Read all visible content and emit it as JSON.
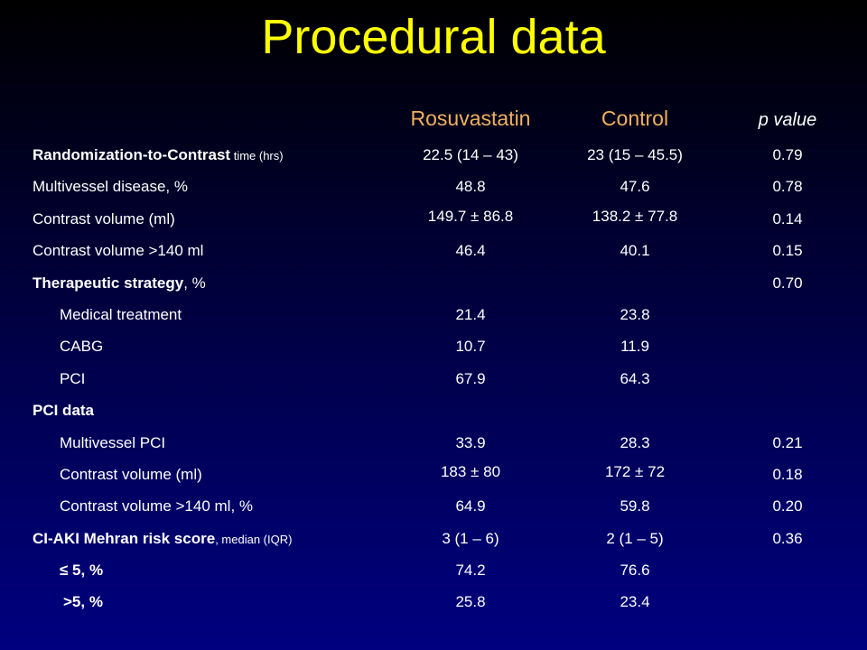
{
  "title": "Procedural data",
  "headers": {
    "rosuvastatin": "Rosuvastatin",
    "control": "Control",
    "pvalue": "p value"
  },
  "rows": [
    {
      "label_bold": "Randomization-to-Contrast",
      "label_suffix": " time (hrs)",
      "rosu": "22.5 (14 – 43)",
      "ctrl": "23 (15 – 45.5)",
      "p": "0.79"
    },
    {
      "label": "Multivessel disease, %",
      "rosu": "48.8",
      "ctrl": "47.6",
      "p": "0.78"
    },
    {
      "label": "Contrast volume (ml)",
      "rosu": "149.7 ± 86.8",
      "ctrl": "138.2 ± 77.8",
      "p": "0.14"
    },
    {
      "label": "Contrast volume >140 ml",
      "rosu": "46.4",
      "ctrl": "40.1",
      "p": "0.15"
    },
    {
      "label_bold": "Therapeutic strategy",
      "label_suffix": ", %",
      "rosu": "",
      "ctrl": "",
      "p": "0.70"
    },
    {
      "label": "Medical treatment",
      "rosu": "21.4",
      "ctrl": "23.8",
      "p": ""
    },
    {
      "label": "CABG",
      "rosu": "10.7",
      "ctrl": "11.9",
      "p": ""
    },
    {
      "label": "PCI",
      "rosu": "67.9",
      "ctrl": "64.3",
      "p": ""
    },
    {
      "label_bold": "PCI data",
      "label_suffix": "",
      "rosu": "",
      "ctrl": "",
      "p": ""
    },
    {
      "label": "Multivessel PCI",
      "rosu": "33.9",
      "ctrl": "28.3",
      "p": "0.21"
    },
    {
      "label": "Contrast volume (ml)",
      "rosu": "183 ± 80",
      "ctrl": "172 ± 72",
      "p": "0.18"
    },
    {
      "label": "Contrast volume >140 ml, %",
      "rosu": "64.9",
      "ctrl": "59.8",
      "p": "0.20"
    },
    {
      "label_bold": "CI-AKI Mehran risk score",
      "label_suffix": ", median (IQR)",
      "rosu": "3 (1 – 6)",
      "ctrl": "2 (1 – 5)",
      "p": "0.36"
    },
    {
      "label_bold": "≤ 5, %",
      "label_suffix": "",
      "rosu": "74.2",
      "ctrl": "76.6",
      "p": ""
    },
    {
      "label_bold": ">5, %",
      "label_suffix": "",
      "rosu": "25.8",
      "ctrl": "23.4",
      "p": ""
    }
  ]
}
